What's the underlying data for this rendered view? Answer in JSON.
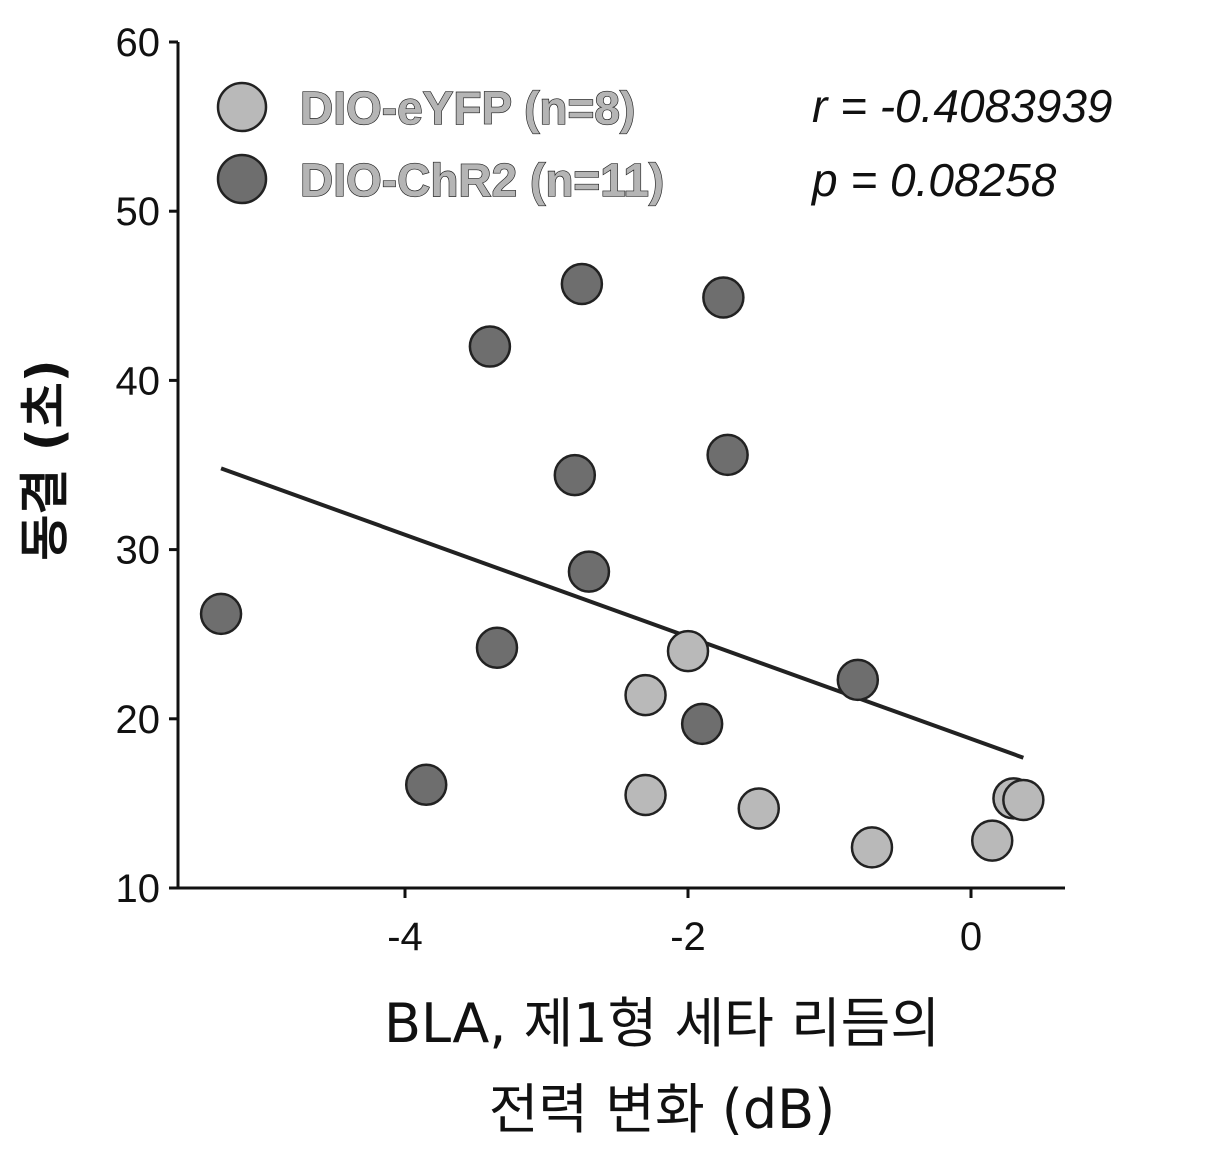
{
  "chart_data": {
    "type": "scatter",
    "xlabel_lines": [
      "BLA, 제1형 세타 리듬의",
      "전력 변화 (dB)"
    ],
    "ylabel": "동결 (초)",
    "xlim": [
      -5.6,
      1.3
    ],
    "ylim": [
      10,
      60
    ],
    "xticks": [
      -4,
      -2,
      0
    ],
    "xtick_labels": [
      "-4",
      "-2",
      "0"
    ],
    "yticks": [
      10,
      20,
      30,
      40,
      50,
      60
    ],
    "ytick_labels": [
      "10",
      "20",
      "30",
      "40",
      "50",
      "60"
    ],
    "legend_placement": "top-left",
    "grid": false,
    "series": [
      {
        "name": "DIO-eYFP (n=8)",
        "color": "#b9b9b9",
        "x": [
          -2.0,
          -2.3,
          -2.3,
          -1.5,
          -0.7,
          0.15,
          0.3,
          0.37
        ],
        "y": [
          24.0,
          21.4,
          15.5,
          14.7,
          12.4,
          12.8,
          15.3,
          15.2
        ]
      },
      {
        "name": "DIO-ChR2 (n=11)",
        "color": "#6e6e6e",
        "x": [
          -5.3,
          -3.85,
          -3.4,
          -3.35,
          -2.75,
          -2.8,
          -2.7,
          -1.75,
          -1.72,
          -1.9,
          -0.8
        ],
        "y": [
          26.2,
          16.1,
          42.0,
          24.2,
          45.7,
          34.4,
          28.7,
          44.9,
          35.6,
          19.7,
          22.3
        ]
      }
    ],
    "regression": {
      "x": [
        -5.3,
        0.37
      ],
      "y": [
        34.8,
        17.7
      ]
    },
    "annotations": [
      "r = -0.4083939",
      "p = 0.08258"
    ]
  }
}
